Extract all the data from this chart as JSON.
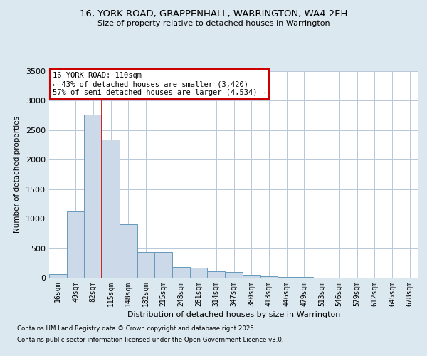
{
  "title_line1": "16, YORK ROAD, GRAPPENHALL, WARRINGTON, WA4 2EH",
  "title_line2": "Size of property relative to detached houses in Warrington",
  "xlabel": "Distribution of detached houses by size in Warrington",
  "ylabel": "Number of detached properties",
  "categories": [
    "16sqm",
    "49sqm",
    "82sqm",
    "115sqm",
    "148sqm",
    "182sqm",
    "215sqm",
    "248sqm",
    "281sqm",
    "314sqm",
    "347sqm",
    "380sqm",
    "413sqm",
    "446sqm",
    "479sqm",
    "513sqm",
    "546sqm",
    "579sqm",
    "612sqm",
    "645sqm",
    "678sqm"
  ],
  "values": [
    55,
    1120,
    2760,
    2340,
    900,
    440,
    440,
    180,
    175,
    110,
    95,
    45,
    25,
    12,
    8,
    4,
    2,
    2,
    1,
    1,
    0
  ],
  "bar_color": "#ccd9e8",
  "bar_edge_color": "#6699bb",
  "bar_edge_width": 0.7,
  "vline_color": "#cc0000",
  "annotation_title": "16 YORK ROAD: 110sqm",
  "annotation_line1": "← 43% of detached houses are smaller (3,420)",
  "annotation_line2": "57% of semi-detached houses are larger (4,534) →",
  "annotation_box_color": "#ffffff",
  "annotation_box_edge_color": "#cc0000",
  "ylim": [
    0,
    3500
  ],
  "yticks": [
    0,
    500,
    1000,
    1500,
    2000,
    2500,
    3000,
    3500
  ],
  "footnote_line1": "Contains HM Land Registry data © Crown copyright and database right 2025.",
  "footnote_line2": "Contains public sector information licensed under the Open Government Licence v3.0.",
  "bg_color": "#dce8f0",
  "plot_bg_color": "#ffffff",
  "grid_color": "#b8c8d8"
}
